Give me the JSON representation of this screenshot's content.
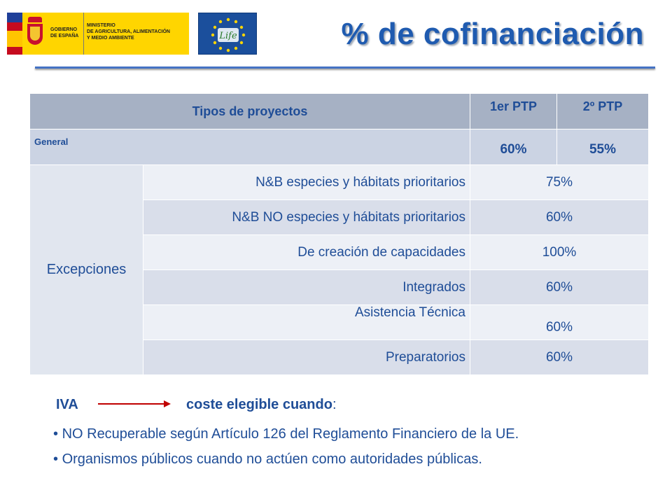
{
  "header": {
    "gov_logo_line1": "GOBIERNO DE ESPAÑA",
    "gov_logo_line2": "MINISTERIO\nDE AGRICULTURA, ALIMENTACIÓN\nY MEDIO AMBIENTE",
    "life_logo_text": "Life",
    "title": "% de cofinanciación"
  },
  "table": {
    "header": {
      "col_type": "Tipos de proyectos",
      "col_ptp1": "1er PTP",
      "col_ptp2": "2º PTP"
    },
    "general": {
      "label": "General",
      "ptp1": "60%",
      "ptp2": "55%"
    },
    "exceptions_label": "Excepciones",
    "exceptions": [
      {
        "name": "N&B especies y hábitats prioritarios",
        "value": "75%"
      },
      {
        "name": "N&B NO especies y hábitats prioritarios",
        "value": "60%"
      },
      {
        "name": "De creación de capacidades",
        "value": "100%"
      },
      {
        "name": "Integrados",
        "value": "60%"
      },
      {
        "name": "Asistencia Técnica",
        "value": "60%"
      },
      {
        "name": "Preparatorios",
        "value": "60%"
      }
    ]
  },
  "iva": {
    "label": "IVA",
    "condition_bold": "coste elegible cuando",
    "condition_suffix": ":",
    "bullets": [
      "NO Recuperable según Artículo 126 del Reglamento Financiero de la UE.",
      "Organismos públicos cuando no actúen como autoridades públicas."
    ]
  },
  "colors": {
    "accent": "#1f4d97",
    "title": "#1f5bb0",
    "rule": "#4472c4",
    "arrow": "#c00000"
  }
}
